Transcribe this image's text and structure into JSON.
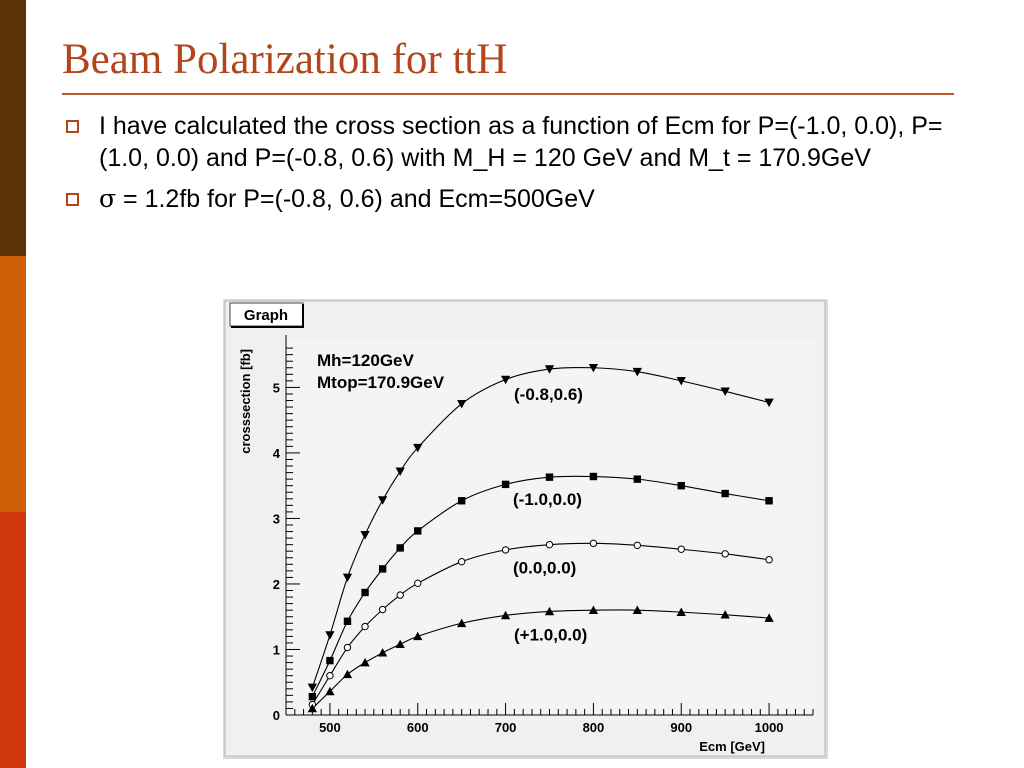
{
  "slide": {
    "title": "Beam Polarization for ttH",
    "bullets": [
      {
        "text": "I have calculated the cross section as a function of Ecm for P=(-1.0, 0.0), P=(1.0, 0.0) and P=(-0.8, 0.6) with M_H = 120 GeV and M_t = 170.9GeV"
      },
      {
        "symbol": "σ",
        "text": " = 1.2fb for P=(-0.8, 0.6) and Ecm=500GeV"
      }
    ],
    "colors": {
      "title": "#b2451c",
      "sidebar": [
        "#5c3304",
        "#d05f05",
        "#d0360b"
      ]
    }
  },
  "graph": {
    "tab_label": "Graph",
    "annotations": [
      "Mh=120GeV",
      "Mtop=170.9GeV"
    ]
  },
  "chart_data": {
    "type": "scatter",
    "title": "",
    "xlabel": "Ecm [GeV]",
    "ylabel": "crosssection [fb]",
    "xlim": [
      450,
      1050
    ],
    "ylim": [
      0,
      5.8
    ],
    "xticks": [
      500,
      600,
      700,
      800,
      900,
      1000
    ],
    "yticks": [
      0,
      1,
      2,
      3,
      4,
      5
    ],
    "grid": false,
    "series": [
      {
        "name": "(-0.8,0.6)",
        "marker": "triangle-down",
        "x": [
          480,
          500,
          520,
          540,
          560,
          580,
          600,
          650,
          700,
          750,
          800,
          850,
          900,
          950,
          1000
        ],
        "y": [
          0.42,
          1.22,
          2.1,
          2.75,
          3.28,
          3.72,
          4.08,
          4.75,
          5.12,
          5.28,
          5.3,
          5.24,
          5.1,
          4.94,
          4.77
        ]
      },
      {
        "name": "(-1.0,0.0)",
        "marker": "square",
        "x": [
          480,
          500,
          520,
          540,
          560,
          580,
          600,
          650,
          700,
          750,
          800,
          850,
          900,
          950,
          1000
        ],
        "y": [
          0.28,
          0.83,
          1.43,
          1.87,
          2.23,
          2.55,
          2.81,
          3.27,
          3.52,
          3.63,
          3.64,
          3.6,
          3.5,
          3.38,
          3.27
        ]
      },
      {
        "name": "(0.0,0.0)",
        "marker": "circle-open",
        "x": [
          480,
          500,
          520,
          540,
          560,
          580,
          600,
          650,
          700,
          750,
          800,
          850,
          900,
          950,
          1000
        ],
        "y": [
          0.16,
          0.6,
          1.03,
          1.35,
          1.61,
          1.83,
          2.01,
          2.34,
          2.52,
          2.6,
          2.62,
          2.59,
          2.53,
          2.46,
          2.37
        ]
      },
      {
        "name": "(+1.0,0.0)",
        "marker": "triangle-up",
        "x": [
          480,
          500,
          520,
          540,
          560,
          580,
          600,
          650,
          700,
          750,
          800,
          850,
          900,
          950,
          1000
        ],
        "y": [
          0.1,
          0.36,
          0.62,
          0.8,
          0.95,
          1.08,
          1.2,
          1.4,
          1.52,
          1.58,
          1.6,
          1.6,
          1.57,
          1.53,
          1.48
        ]
      }
    ]
  }
}
